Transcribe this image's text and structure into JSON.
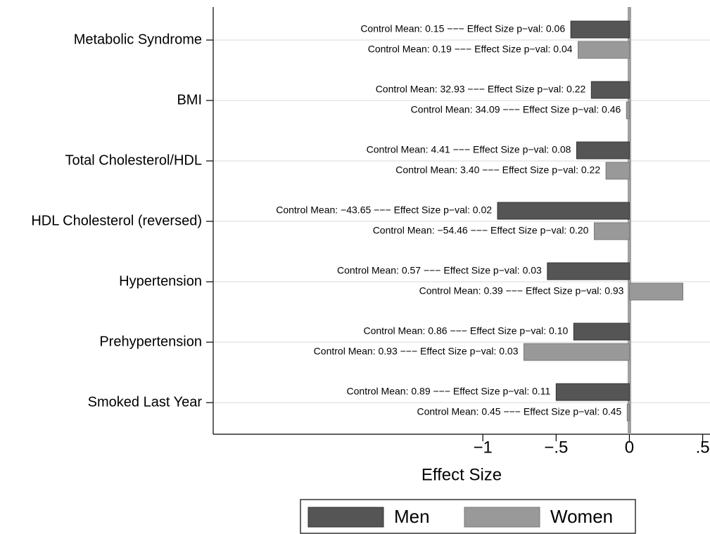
{
  "chart_data": {
    "type": "barh",
    "xlabel": "Effect Size",
    "categories": [
      "Metabolic Syndrome",
      "BMI",
      "Total Cholesterol/HDL",
      "HDL Cholesterol (reversed)",
      "Hypertension",
      "Prehypertension",
      "Smoked Last Year"
    ],
    "series": [
      {
        "name": "Men",
        "color": "#555555",
        "values": [
          -0.4,
          -0.26,
          -0.36,
          -0.9,
          -0.56,
          -0.38,
          -0.5
        ],
        "labels": [
          "Control Mean: 0.15 −−− Effect Size p−val: 0.06",
          "Control Mean: 32.93 −−− Effect Size p−val: 0.22",
          "Control Mean: 4.41 −−− Effect Size p−val: 0.08",
          "Control Mean: −43.65 −−− Effect Size p−val: 0.02",
          "Control Mean: 0.57 −−− Effect Size p−val: 0.03",
          "Control Mean: 0.86 −−− Effect Size p−val: 0.10",
          "Control Mean: 0.89 −−− Effect Size p−val: 0.11"
        ]
      },
      {
        "name": "Women",
        "color": "#999999",
        "values": [
          -0.35,
          -0.02,
          -0.16,
          -0.24,
          0.365,
          -0.72,
          -0.015
        ],
        "labels": [
          "Control Mean: 0.19 −−− Effect Size p−val: 0.04",
          "Control Mean: 34.09 −−− Effect Size p−val: 0.46",
          "Control Mean: 3.40 −−− Effect Size p−val: 0.22",
          "Control Mean: −54.46 −−− Effect Size p−val: 0.20",
          "Control Mean: 0.39 −−− Effect Size p−val: 0.93",
          "Control Mean: 0.93 −−− Effect Size p−val: 0.03",
          "Control Mean: 0.45 −−− Effect Size p−val: 0.45"
        ]
      }
    ],
    "xlim": [
      -2.84,
      0.55
    ],
    "xticks": [
      {
        "value": -1,
        "label": "−1"
      },
      {
        "value": -0.5,
        "label": "−.5"
      },
      0,
      {
        "value": 0.5,
        "label": ".5"
      }
    ],
    "grid": true
  }
}
